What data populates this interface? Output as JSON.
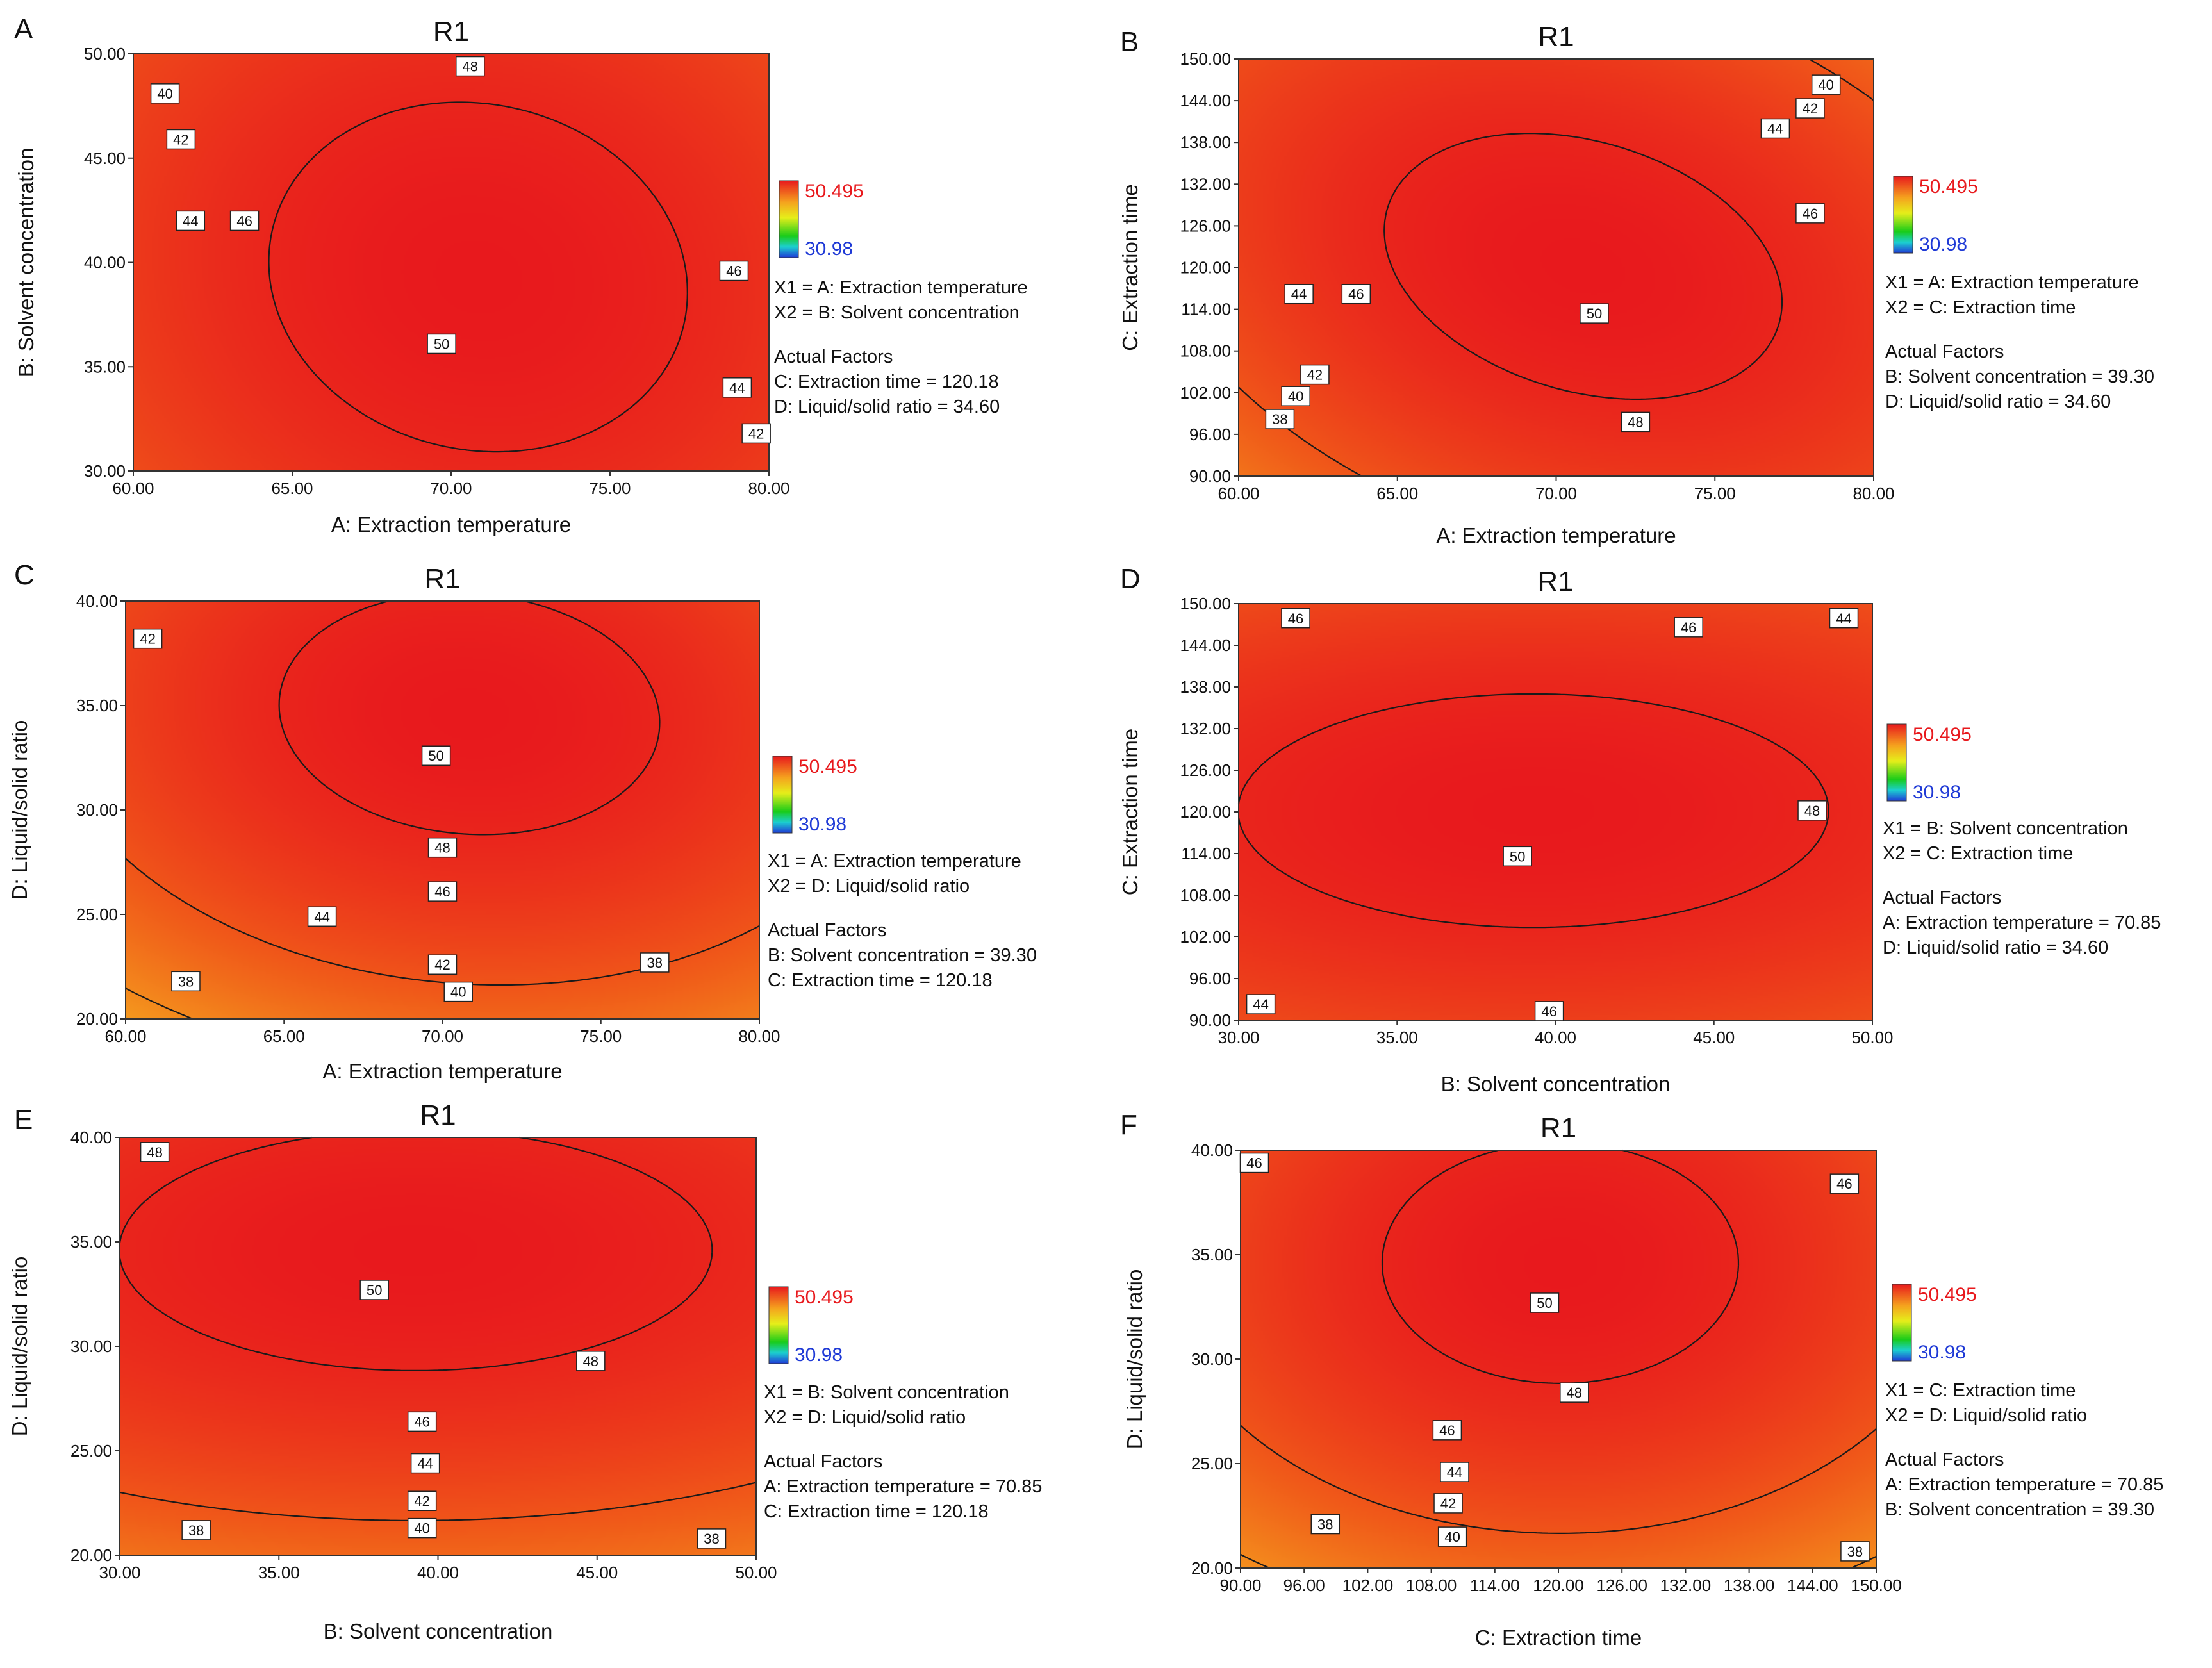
{
  "colorbar": {
    "max_color": "#e8191d",
    "min_color": "#1f3ad6"
  },
  "chart_data": [
    {
      "type": "contour",
      "panel_letter": "A",
      "title": "R1",
      "xlabel": "A: Extraction temperature",
      "ylabel": "B: Solvent concentration",
      "xlim": [
        60,
        80
      ],
      "ylim": [
        30,
        50
      ],
      "xticks": [
        "60.00",
        "65.00",
        "70.00",
        "75.00",
        "80.00"
      ],
      "yticks": [
        "30.00",
        "35.00",
        "40.00",
        "45.00",
        "50.00"
      ],
      "levels": [
        38,
        40,
        42,
        44,
        46,
        48,
        50
      ],
      "contour_labels": [
        {
          "text": "40",
          "x": 61.0,
          "y": 48.1
        },
        {
          "text": "42",
          "x": 61.5,
          "y": 45.9
        },
        {
          "text": "44",
          "x": 61.8,
          "y": 42.0
        },
        {
          "text": "46",
          "x": 63.5,
          "y": 42.0
        },
        {
          "text": "48",
          "x": 70.6,
          "y": 49.4
        },
        {
          "text": "50",
          "x": 69.7,
          "y": 36.1
        },
        {
          "text": "46",
          "x": 78.9,
          "y": 39.6
        },
        {
          "text": "44",
          "x": 79.0,
          "y": 34.0
        },
        {
          "text": "42",
          "x": 79.6,
          "y": 31.8
        }
      ],
      "model": {
        "x0": 70.85,
        "y0": 39.3,
        "max": 50.495,
        "kxx": 0.0115,
        "kyy": 0.0071,
        "kxy": 0.0016
      },
      "colorbar": {
        "max": "50.495",
        "min": "30.98"
      },
      "info": {
        "x1": "X1 = A: Extraction temperature",
        "x2": "X2 = B: Solvent concentration",
        "heading": "Actual Factors",
        "f1": "C: Extraction time = 120.18",
        "f2": "D: Liquid/solid ratio = 34.60"
      }
    },
    {
      "type": "contour",
      "panel_letter": "B",
      "title": "R1",
      "xlabel": "A: Extraction temperature",
      "ylabel": "C: Extraction time",
      "xlim": [
        60,
        80
      ],
      "ylim": [
        90,
        150
      ],
      "xticks": [
        "60.00",
        "65.00",
        "70.00",
        "75.00",
        "80.00"
      ],
      "yticks": [
        "90.00",
        "96.00",
        "102.00",
        "108.00",
        "114.00",
        "120.00",
        "126.00",
        "132.00",
        "138.00",
        "144.00",
        "150.00"
      ],
      "levels": [
        38,
        40,
        42,
        44,
        46,
        48,
        50
      ],
      "contour_labels": [
        {
          "text": "38",
          "x": 61.3,
          "y": 98.2
        },
        {
          "text": "40",
          "x": 61.8,
          "y": 101.5
        },
        {
          "text": "42",
          "x": 62.4,
          "y": 104.6
        },
        {
          "text": "44",
          "x": 61.9,
          "y": 116.2
        },
        {
          "text": "46",
          "x": 63.7,
          "y": 116.2
        },
        {
          "text": "50",
          "x": 71.2,
          "y": 113.4
        },
        {
          "text": "48",
          "x": 72.5,
          "y": 97.8
        },
        {
          "text": "46",
          "x": 78.0,
          "y": 127.8
        },
        {
          "text": "44",
          "x": 76.9,
          "y": 140.0
        },
        {
          "text": "42",
          "x": 78.0,
          "y": 142.9
        },
        {
          "text": "40",
          "x": 78.5,
          "y": 146.3
        }
      ],
      "model": {
        "x0": 70.85,
        "y0": 120.18,
        "max": 50.495,
        "kxx": 0.0136,
        "kyy": 0.00146,
        "kxy": 0.0024
      },
      "colorbar": {
        "max": "50.495",
        "min": "30.98"
      },
      "info": {
        "x1": "X1 = A: Extraction temperature",
        "x2": "X2 = C: Extraction time",
        "heading": "Actual Factors",
        "f1": "B: Solvent concentration = 39.30",
        "f2": "D: Liquid/solid ratio = 34.60"
      }
    },
    {
      "type": "contour",
      "panel_letter": "C",
      "title": "R1",
      "xlabel": "A: Extraction temperature",
      "ylabel": "D: Liquid/solid ratio",
      "xlim": [
        60,
        80
      ],
      "ylim": [
        20,
        40
      ],
      "xticks": [
        "60.00",
        "65.00",
        "70.00",
        "75.00",
        "80.00"
      ],
      "yticks": [
        "20.00",
        "25.00",
        "30.00",
        "35.00",
        "40.00"
      ],
      "levels": [
        38,
        40,
        42,
        44,
        46,
        48,
        50
      ],
      "contour_labels": [
        {
          "text": "42",
          "x": 60.7,
          "y": 38.2
        },
        {
          "text": "50",
          "x": 69.8,
          "y": 32.6
        },
        {
          "text": "48",
          "x": 70.0,
          "y": 28.2
        },
        {
          "text": "46",
          "x": 70.0,
          "y": 26.1
        },
        {
          "text": "44",
          "x": 66.2,
          "y": 24.9
        },
        {
          "text": "42",
          "x": 70.0,
          "y": 22.6
        },
        {
          "text": "40",
          "x": 70.5,
          "y": 21.3
        },
        {
          "text": "38",
          "x": 61.9,
          "y": 21.8
        },
        {
          "text": "38",
          "x": 76.7,
          "y": 22.7
        }
      ],
      "model": {
        "x0": 70.85,
        "y0": 34.6,
        "max": 50.495,
        "kxx": 0.0138,
        "kyy": 0.0149,
        "kxy": 0.0021
      },
      "colorbar": {
        "max": "50.495",
        "min": "30.98"
      },
      "info": {
        "x1": "X1 = A: Extraction temperature",
        "x2": "X2 = D: Liquid/solid ratio",
        "heading": "Actual Factors",
        "f1": "B: Solvent concentration = 39.30",
        "f2": "C: Extraction time = 120.18"
      }
    },
    {
      "type": "contour",
      "panel_letter": "D",
      "title": "R1",
      "xlabel": "B: Solvent concentration",
      "ylabel": "C: Extraction time",
      "xlim": [
        30,
        50
      ],
      "ylim": [
        90,
        150
      ],
      "xticks": [
        "30.00",
        "35.00",
        "40.00",
        "45.00",
        "50.00"
      ],
      "yticks": [
        "90.00",
        "96.00",
        "102.00",
        "108.00",
        "114.00",
        "120.00",
        "126.00",
        "132.00",
        "138.00",
        "144.00",
        "150.00"
      ],
      "levels": [
        44,
        46,
        48,
        50
      ],
      "contour_labels": [
        {
          "text": "46",
          "x": 31.8,
          "y": 147.9
        },
        {
          "text": "46",
          "x": 44.2,
          "y": 146.6
        },
        {
          "text": "44",
          "x": 49.1,
          "y": 147.9
        },
        {
          "text": "50",
          "x": 38.8,
          "y": 113.6
        },
        {
          "text": "48",
          "x": 48.1,
          "y": 120.2
        },
        {
          "text": "44",
          "x": 30.7,
          "y": 92.3
        },
        {
          "text": "46",
          "x": 39.8,
          "y": 91.3
        }
      ],
      "model": {
        "x0": 39.3,
        "y0": 120.18,
        "max": 50.495,
        "kxx": 0.0057,
        "kyy": 0.00175,
        "kxy": 0.0
      },
      "colorbar": {
        "max": "50.495",
        "min": "30.98"
      },
      "info": {
        "x1": "X1 = B: Solvent concentration",
        "x2": "X2 = C: Extraction time",
        "heading": "Actual Factors",
        "f1": "A: Extraction temperature = 70.85",
        "f2": "D: Liquid/solid ratio = 34.60"
      }
    },
    {
      "type": "contour",
      "panel_letter": "E",
      "title": "R1",
      "xlabel": "B: Solvent concentration",
      "ylabel": "D: Liquid/solid ratio",
      "xlim": [
        30,
        50
      ],
      "ylim": [
        20,
        40
      ],
      "xticks": [
        "30.00",
        "35.00",
        "40.00",
        "45.00",
        "50.00"
      ],
      "yticks": [
        "20.00",
        "25.00",
        "30.00",
        "35.00",
        "40.00"
      ],
      "levels": [
        38,
        40,
        42,
        44,
        46,
        48,
        50
      ],
      "contour_labels": [
        {
          "text": "48",
          "x": 31.1,
          "y": 39.3
        },
        {
          "text": "50",
          "x": 38.0,
          "y": 32.7
        },
        {
          "text": "48",
          "x": 44.8,
          "y": 29.3
        },
        {
          "text": "46",
          "x": 39.5,
          "y": 26.4
        },
        {
          "text": "44",
          "x": 39.6,
          "y": 24.4
        },
        {
          "text": "42",
          "x": 39.5,
          "y": 22.6
        },
        {
          "text": "40",
          "x": 39.5,
          "y": 21.3
        },
        {
          "text": "38",
          "x": 32.4,
          "y": 21.2
        },
        {
          "text": "38",
          "x": 48.6,
          "y": 20.8
        }
      ],
      "model": {
        "x0": 39.3,
        "y0": 34.6,
        "max": 50.495,
        "kxx": 0.0057,
        "kyy": 0.0149,
        "kxy": 0.0
      },
      "colorbar": {
        "max": "50.495",
        "min": "30.98"
      },
      "info": {
        "x1": "X1 = B: Solvent concentration",
        "x2": "X2 = D: Liquid/solid ratio",
        "heading": "Actual Factors",
        "f1": "A: Extraction temperature = 70.85",
        "f2": "C: Extraction time = 120.18"
      }
    },
    {
      "type": "contour",
      "panel_letter": "F",
      "title": "R1",
      "xlabel": "C: Extraction time",
      "ylabel": "D: Liquid/solid ratio",
      "xlim": [
        90,
        150
      ],
      "ylim": [
        20,
        40
      ],
      "xticks": [
        "90.00",
        "96.00",
        "102.00",
        "108.00",
        "114.00",
        "120.00",
        "126.00",
        "132.00",
        "138.00",
        "144.00",
        "150.00"
      ],
      "yticks": [
        "20.00",
        "25.00",
        "30.00",
        "35.00",
        "40.00"
      ],
      "levels": [
        38,
        40,
        42,
        44,
        46,
        48,
        50
      ],
      "contour_labels": [
        {
          "text": "46",
          "x": 91.3,
          "y": 39.4
        },
        {
          "text": "46",
          "x": 147.0,
          "y": 38.4
        },
        {
          "text": "50",
          "x": 118.7,
          "y": 32.7
        },
        {
          "text": "48",
          "x": 121.5,
          "y": 28.4
        },
        {
          "text": "46",
          "x": 109.5,
          "y": 26.6
        },
        {
          "text": "44",
          "x": 110.2,
          "y": 24.6
        },
        {
          "text": "42",
          "x": 109.6,
          "y": 23.1
        },
        {
          "text": "40",
          "x": 110.0,
          "y": 21.5
        },
        {
          "text": "38",
          "x": 98.0,
          "y": 22.1
        },
        {
          "text": "38",
          "x": 148.0,
          "y": 20.8
        }
      ],
      "model": {
        "x0": 120.18,
        "y0": 34.6,
        "max": 50.495,
        "kxx": 0.00175,
        "kyy": 0.0149,
        "kxy": 0.0
      },
      "colorbar": {
        "max": "50.495",
        "min": "30.98"
      },
      "info": {
        "x1": "X1 = C: Extraction time",
        "x2": "X2 = D: Liquid/solid ratio",
        "heading": "Actual Factors",
        "f1": "A: Extraction temperature = 70.85",
        "f2": "B: Solvent concentration = 39.30"
      }
    }
  ]
}
